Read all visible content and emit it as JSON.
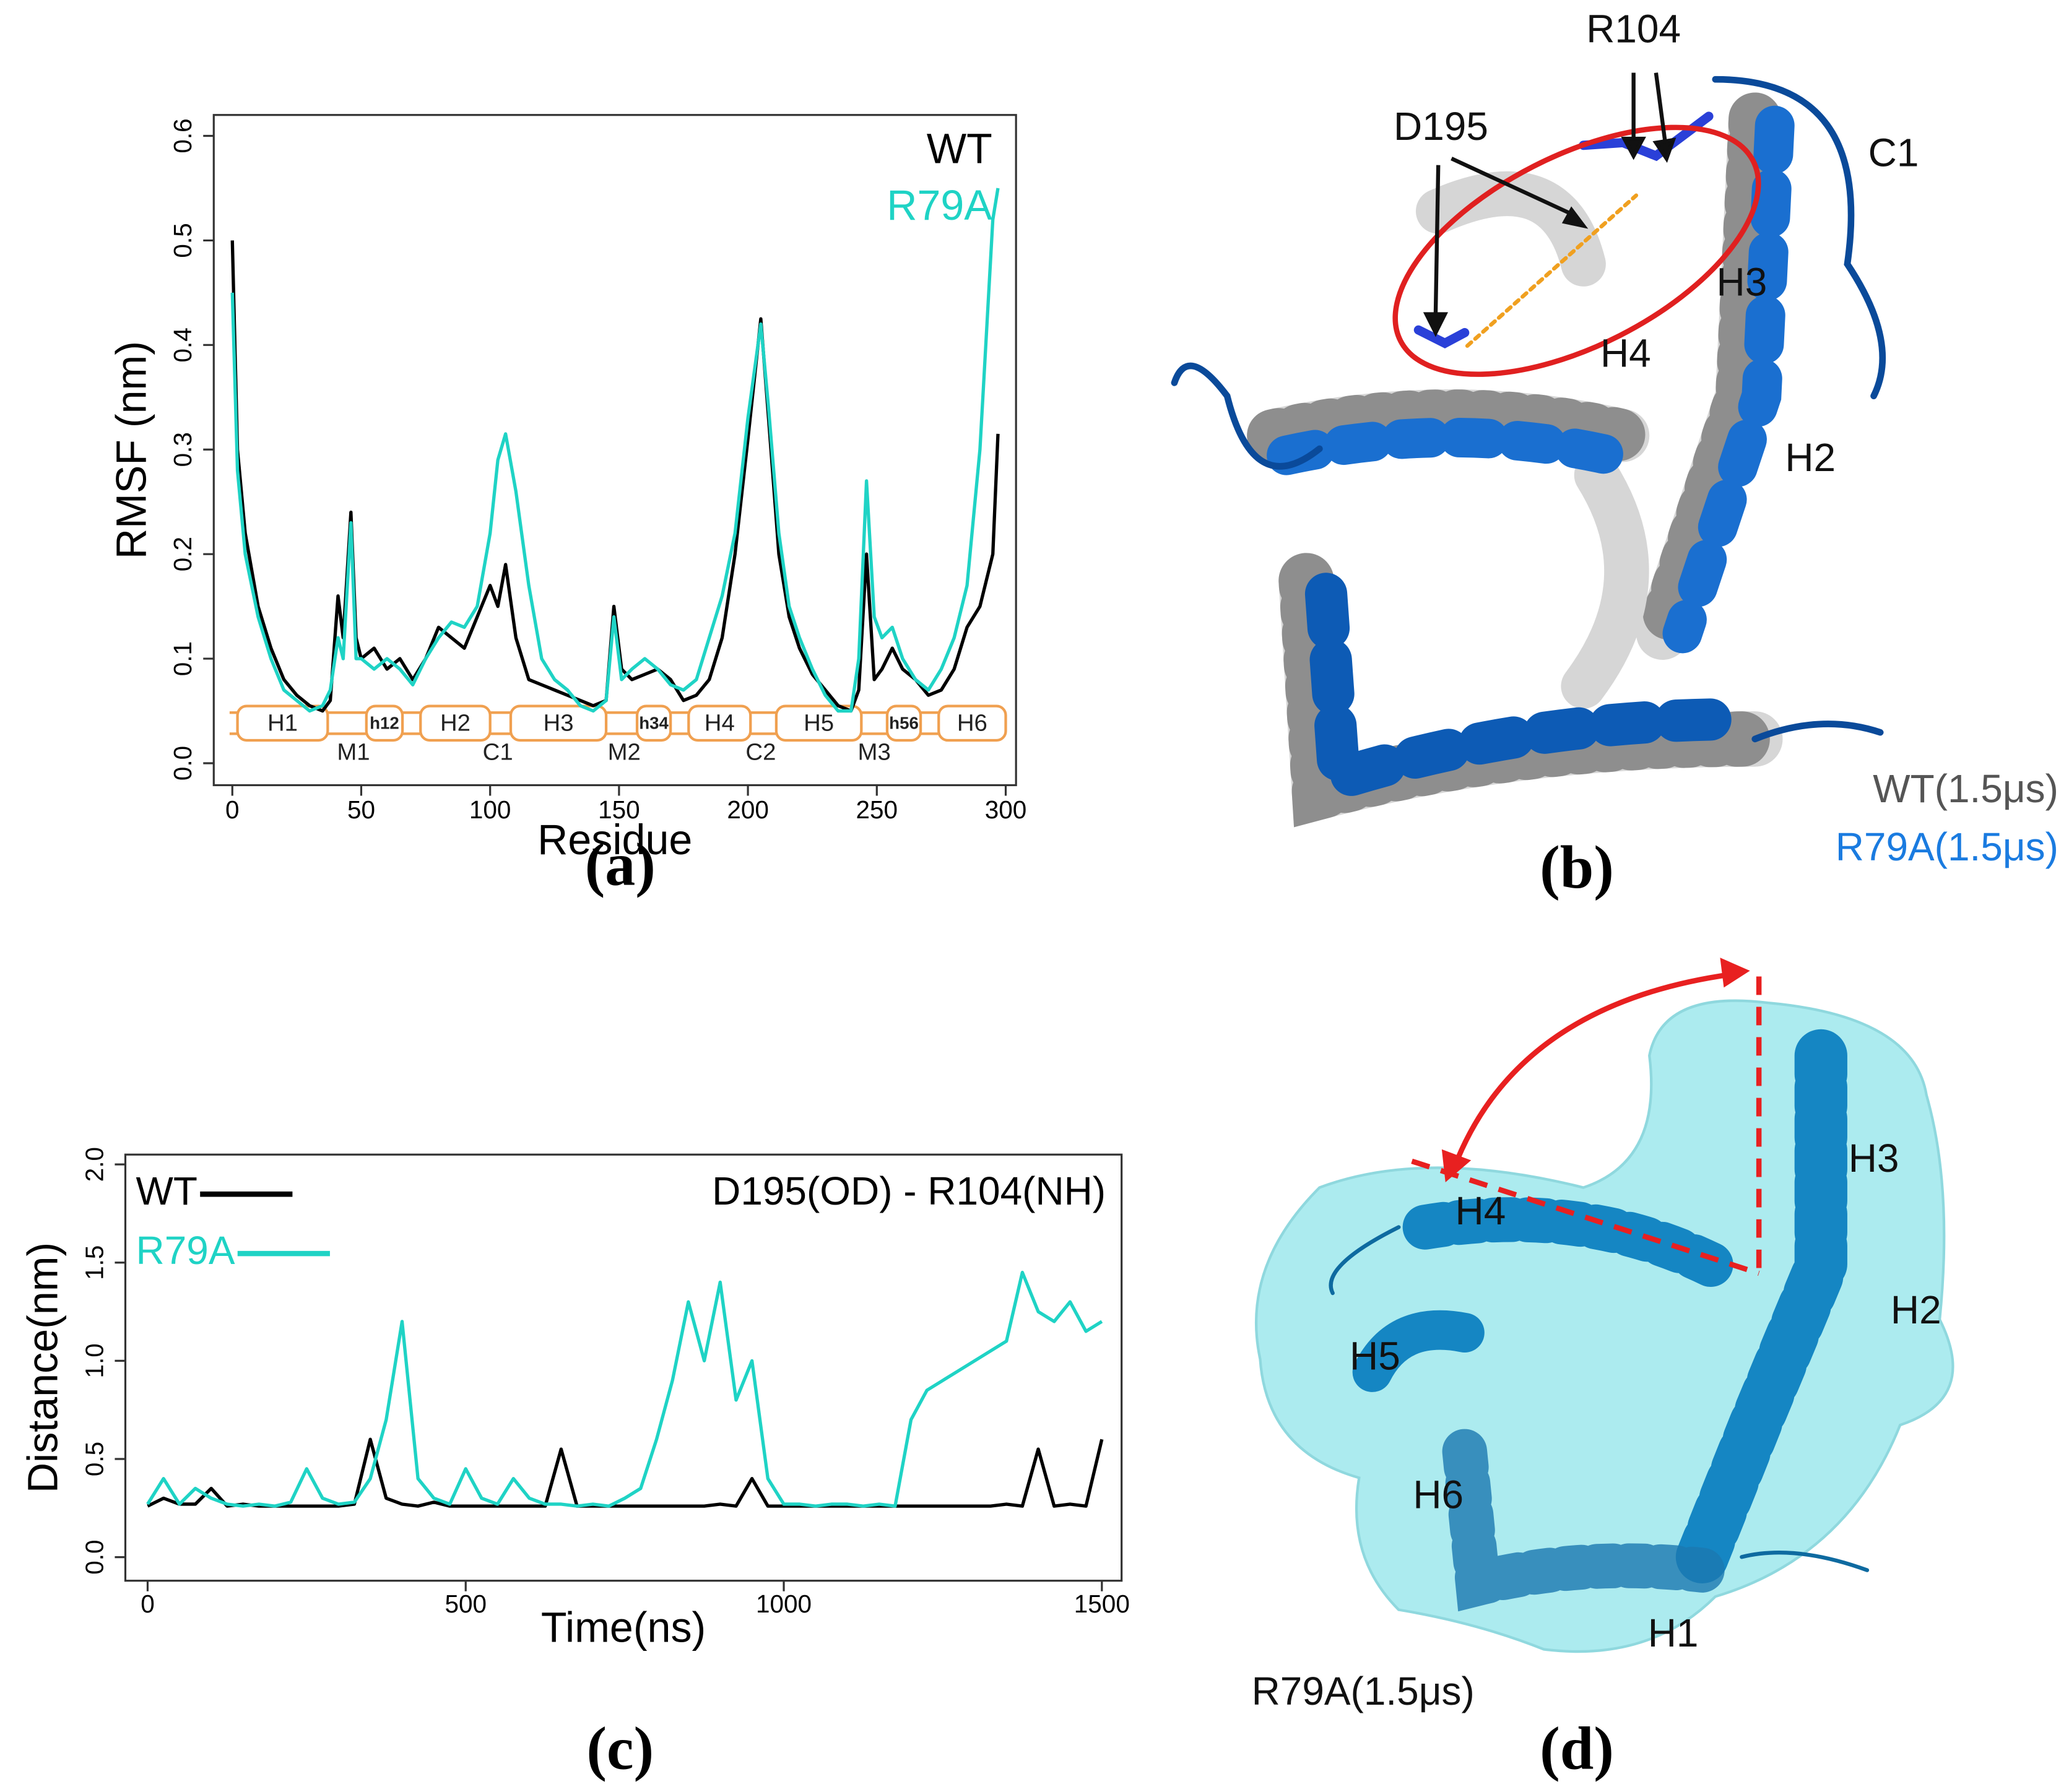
{
  "chart_data": [
    {
      "type": "line",
      "panel_label": "(a)",
      "xlabel": "Residue",
      "ylabel": "RMSF (nm)",
      "x": [
        0,
        2,
        5,
        10,
        15,
        20,
        25,
        30,
        35,
        38,
        41,
        43,
        46,
        48,
        50,
        55,
        60,
        65,
        70,
        75,
        80,
        85,
        90,
        95,
        100,
        103,
        106,
        110,
        115,
        120,
        125,
        130,
        135,
        140,
        145,
        148,
        151,
        155,
        160,
        165,
        170,
        175,
        180,
        185,
        190,
        195,
        200,
        205,
        208,
        212,
        216,
        220,
        225,
        230,
        235,
        240,
        243,
        246,
        249,
        252,
        256,
        260,
        265,
        270,
        275,
        280,
        285,
        290,
        295,
        297
      ],
      "series": [
        {
          "name": "WT",
          "color": "#000000",
          "values": [
            0.5,
            0.3,
            0.22,
            0.15,
            0.11,
            0.08,
            0.065,
            0.055,
            0.05,
            0.06,
            0.16,
            0.12,
            0.24,
            0.12,
            0.1,
            0.11,
            0.09,
            0.1,
            0.08,
            0.1,
            0.13,
            0.12,
            0.11,
            0.14,
            0.17,
            0.15,
            0.19,
            0.12,
            0.08,
            0.075,
            0.07,
            0.065,
            0.06,
            0.055,
            0.06,
            0.15,
            0.09,
            0.08,
            0.085,
            0.09,
            0.08,
            0.06,
            0.065,
            0.08,
            0.12,
            0.2,
            0.31,
            0.425,
            0.33,
            0.2,
            0.14,
            0.11,
            0.085,
            0.07,
            0.055,
            0.05,
            0.07,
            0.2,
            0.08,
            0.09,
            0.11,
            0.09,
            0.08,
            0.065,
            0.07,
            0.09,
            0.13,
            0.15,
            0.2,
            0.315
          ]
        },
        {
          "name": "R79A",
          "color": "#1fd3c5",
          "values": [
            0.45,
            0.28,
            0.2,
            0.14,
            0.1,
            0.07,
            0.06,
            0.05,
            0.055,
            0.07,
            0.12,
            0.1,
            0.23,
            0.1,
            0.1,
            0.09,
            0.1,
            0.09,
            0.075,
            0.1,
            0.12,
            0.135,
            0.13,
            0.15,
            0.22,
            0.29,
            0.315,
            0.26,
            0.17,
            0.1,
            0.08,
            0.07,
            0.055,
            0.05,
            0.06,
            0.14,
            0.08,
            0.09,
            0.1,
            0.09,
            0.075,
            0.07,
            0.08,
            0.12,
            0.16,
            0.22,
            0.33,
            0.42,
            0.34,
            0.22,
            0.15,
            0.12,
            0.09,
            0.065,
            0.05,
            0.05,
            0.1,
            0.27,
            0.14,
            0.12,
            0.13,
            0.1,
            0.08,
            0.07,
            0.09,
            0.12,
            0.17,
            0.3,
            0.52,
            0.55
          ]
        }
      ],
      "xlim": [
        -7.2,
        304
      ],
      "ylim": [
        -0.021,
        0.62
      ],
      "xticks": [
        0,
        50,
        100,
        150,
        200,
        250,
        300
      ],
      "yticks": [
        {
          "value": 0,
          "label": "0.0"
        },
        0.1,
        0.2,
        0.3,
        0.4,
        0.5,
        0.6
      ],
      "legend": "upper right",
      "helices": [
        {
          "label": "H1",
          "start": 2,
          "end": 37
        },
        {
          "label": "h12",
          "start": 52,
          "end": 66
        },
        {
          "label": "H2",
          "start": 73,
          "end": 100
        },
        {
          "label": "H3",
          "start": 108,
          "end": 145
        },
        {
          "label": "h34",
          "start": 157,
          "end": 170
        },
        {
          "label": "H4",
          "start": 177,
          "end": 201
        },
        {
          "label": "H5",
          "start": 211,
          "end": 244
        },
        {
          "label": "h56",
          "start": 254,
          "end": 267
        },
        {
          "label": "H6",
          "start": 274,
          "end": 300
        }
      ],
      "loops": [
        {
          "label": "M1",
          "x": 47
        },
        {
          "label": "C1",
          "x": 103
        },
        {
          "label": "M2",
          "x": 152
        },
        {
          "label": "C2",
          "x": 205
        },
        {
          "label": "M3",
          "x": 249
        }
      ]
    },
    {
      "type": "line",
      "panel_label": "(c)",
      "xlabel": "Time(ns)",
      "ylabel": "Distance(nm)",
      "annotation": "D195(OD) - R104(NH)",
      "x": [
        0,
        25,
        50,
        75,
        100,
        125,
        150,
        175,
        200,
        225,
        250,
        275,
        300,
        325,
        350,
        375,
        400,
        425,
        450,
        475,
        500,
        525,
        550,
        575,
        600,
        625,
        650,
        675,
        700,
        725,
        750,
        775,
        800,
        825,
        850,
        875,
        900,
        925,
        950,
        975,
        1000,
        1025,
        1050,
        1075,
        1100,
        1125,
        1150,
        1175,
        1200,
        1225,
        1250,
        1275,
        1300,
        1325,
        1350,
        1375,
        1400,
        1425,
        1450,
        1475,
        1500
      ],
      "series": [
        {
          "name": "WT",
          "color": "#000000",
          "values": [
            0.26,
            0.3,
            0.27,
            0.27,
            0.35,
            0.26,
            0.27,
            0.26,
            0.26,
            0.26,
            0.26,
            0.26,
            0.26,
            0.27,
            0.6,
            0.3,
            0.27,
            0.26,
            0.28,
            0.26,
            0.26,
            0.26,
            0.26,
            0.26,
            0.26,
            0.26,
            0.55,
            0.26,
            0.26,
            0.26,
            0.26,
            0.26,
            0.26,
            0.26,
            0.26,
            0.26,
            0.27,
            0.26,
            0.4,
            0.26,
            0.26,
            0.26,
            0.26,
            0.26,
            0.26,
            0.26,
            0.26,
            0.26,
            0.26,
            0.26,
            0.26,
            0.26,
            0.26,
            0.26,
            0.27,
            0.26,
            0.55,
            0.26,
            0.27,
            0.26,
            0.6
          ]
        },
        {
          "name": "R79A",
          "color": "#1fd3c5",
          "values": [
            0.27,
            0.4,
            0.27,
            0.35,
            0.3,
            0.27,
            0.26,
            0.27,
            0.26,
            0.28,
            0.45,
            0.3,
            0.27,
            0.28,
            0.4,
            0.7,
            1.2,
            0.4,
            0.3,
            0.27,
            0.45,
            0.3,
            0.27,
            0.4,
            0.3,
            0.27,
            0.27,
            0.26,
            0.27,
            0.26,
            0.3,
            0.35,
            0.6,
            0.9,
            1.3,
            1.0,
            1.4,
            0.8,
            1.0,
            0.4,
            0.27,
            0.27,
            0.26,
            0.27,
            0.27,
            0.26,
            0.27,
            0.26,
            0.7,
            0.85,
            0.9,
            0.95,
            1.0,
            1.05,
            1.1,
            1.45,
            1.25,
            1.2,
            1.3,
            1.15,
            1.2
          ]
        }
      ],
      "xlim": [
        -35,
        1531
      ],
      "ylim": [
        -0.12,
        2.05
      ],
      "xticks": [
        0,
        500,
        1000,
        1500
      ],
      "yticks": [
        {
          "value": 0,
          "label": "0.0"
        },
        0.5,
        {
          "value": 1,
          "label": "1.0"
        },
        1.5,
        {
          "value": 2,
          "label": "2.0"
        }
      ],
      "legend": "upper left"
    }
  ],
  "images": [
    {
      "panel_label": "(b)",
      "annotations": [
        "R104",
        "D195",
        "C1",
        "H3",
        "H4",
        "H2"
      ],
      "legend": [
        "WT(1.5μs)",
        "R79A(1.5μs)"
      ]
    },
    {
      "panel_label": "(d)",
      "annotations": [
        "H3",
        "H4",
        "H2",
        "H5",
        "H6",
        "H1"
      ],
      "legend": [
        "R79A(1.5μs)"
      ]
    }
  ]
}
